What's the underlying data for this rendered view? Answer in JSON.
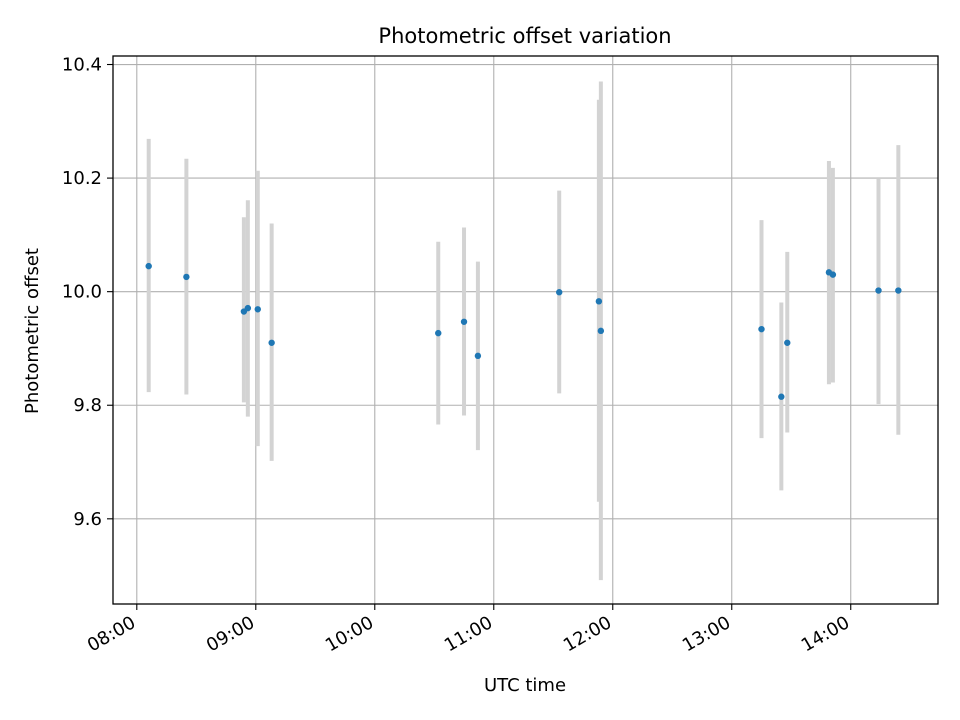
{
  "chart_data": {
    "type": "scatter",
    "title": "Photometric offset variation",
    "xlabel": "UTC time",
    "ylabel": "Photometric offset",
    "x_unit": "UTC time of day (HH:MM)",
    "xlim": [
      "07:48",
      "14:44"
    ],
    "ylim": [
      9.45,
      10.415
    ],
    "x_ticks": [
      "08:00",
      "09:00",
      "10:00",
      "11:00",
      "12:00",
      "13:00",
      "14:00"
    ],
    "y_ticks": [
      9.6,
      9.8,
      10.0,
      10.2,
      10.4
    ],
    "y_tick_labels": [
      "9.6",
      "9.8",
      "10.0",
      "10.2",
      "10.4"
    ],
    "grid": true,
    "point_color": "#1f77b4",
    "errorbar_color": "#d3d3d3",
    "points": [
      {
        "x": "08:06",
        "y": 10.045,
        "ylow": 9.823,
        "yhigh": 10.269
      },
      {
        "x": "08:25",
        "y": 10.026,
        "ylow": 9.819,
        "yhigh": 10.234
      },
      {
        "x": "08:54",
        "y": 9.965,
        "ylow": 9.805,
        "yhigh": 10.131
      },
      {
        "x": "08:56",
        "y": 9.971,
        "ylow": 9.78,
        "yhigh": 10.161
      },
      {
        "x": "09:01",
        "y": 9.969,
        "ylow": 9.728,
        "yhigh": 10.213
      },
      {
        "x": "09:08",
        "y": 9.91,
        "ylow": 9.702,
        "yhigh": 10.12
      },
      {
        "x": "10:32",
        "y": 9.927,
        "ylow": 9.766,
        "yhigh": 10.088
      },
      {
        "x": "10:45",
        "y": 9.947,
        "ylow": 9.782,
        "yhigh": 10.113
      },
      {
        "x": "10:52",
        "y": 9.887,
        "ylow": 9.721,
        "yhigh": 10.053
      },
      {
        "x": "11:33",
        "y": 9.999,
        "ylow": 9.821,
        "yhigh": 10.178
      },
      {
        "x": "11:53",
        "y": 9.983,
        "ylow": 9.63,
        "yhigh": 10.338
      },
      {
        "x": "11:54",
        "y": 9.931,
        "ylow": 9.492,
        "yhigh": 10.37
      },
      {
        "x": "13:15",
        "y": 9.934,
        "ylow": 9.742,
        "yhigh": 10.126
      },
      {
        "x": "13:25",
        "y": 9.815,
        "ylow": 9.65,
        "yhigh": 9.981
      },
      {
        "x": "13:28",
        "y": 9.91,
        "ylow": 9.752,
        "yhigh": 10.07
      },
      {
        "x": "13:49",
        "y": 10.034,
        "ylow": 9.837,
        "yhigh": 10.23
      },
      {
        "x": "13:51",
        "y": 10.03,
        "ylow": 9.84,
        "yhigh": 10.218
      },
      {
        "x": "14:14",
        "y": 10.002,
        "ylow": 9.802,
        "yhigh": 10.2
      },
      {
        "x": "14:24",
        "y": 10.002,
        "ylow": 9.748,
        "yhigh": 10.258
      }
    ]
  }
}
